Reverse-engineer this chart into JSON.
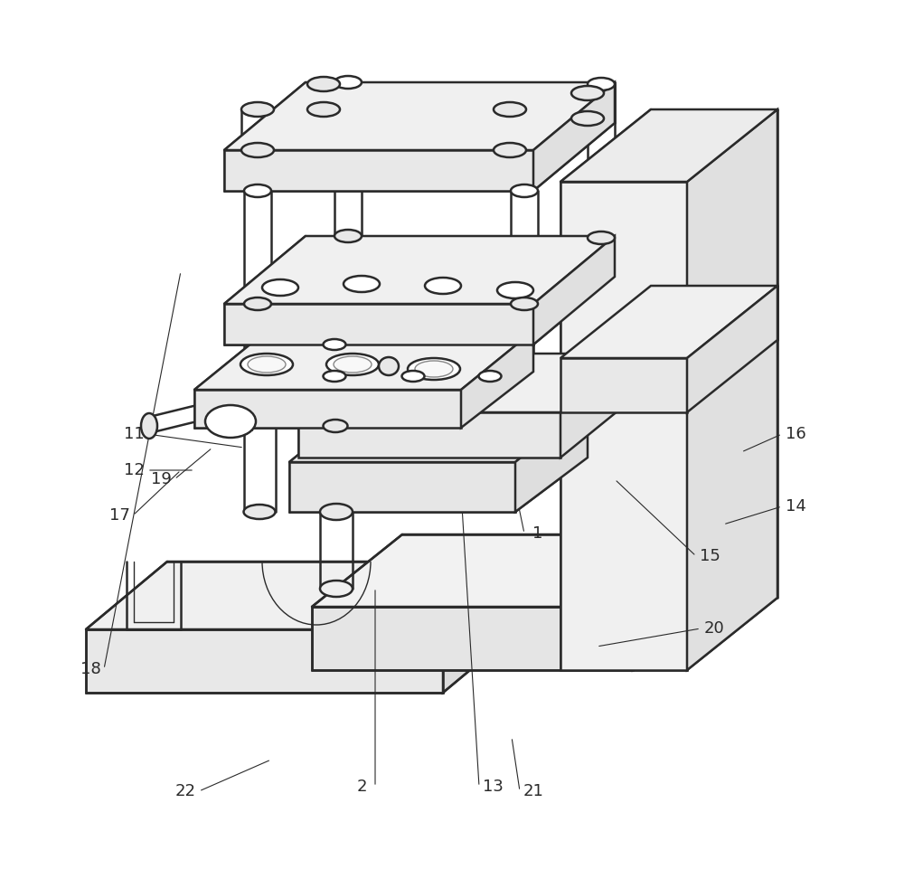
{
  "background_color": "#ffffff",
  "line_color": "#2a2a2a",
  "lw_main": 1.8,
  "lw_thin": 1.0,
  "label_fontsize": 13,
  "fig_width": 10.0,
  "fig_height": 9.61
}
